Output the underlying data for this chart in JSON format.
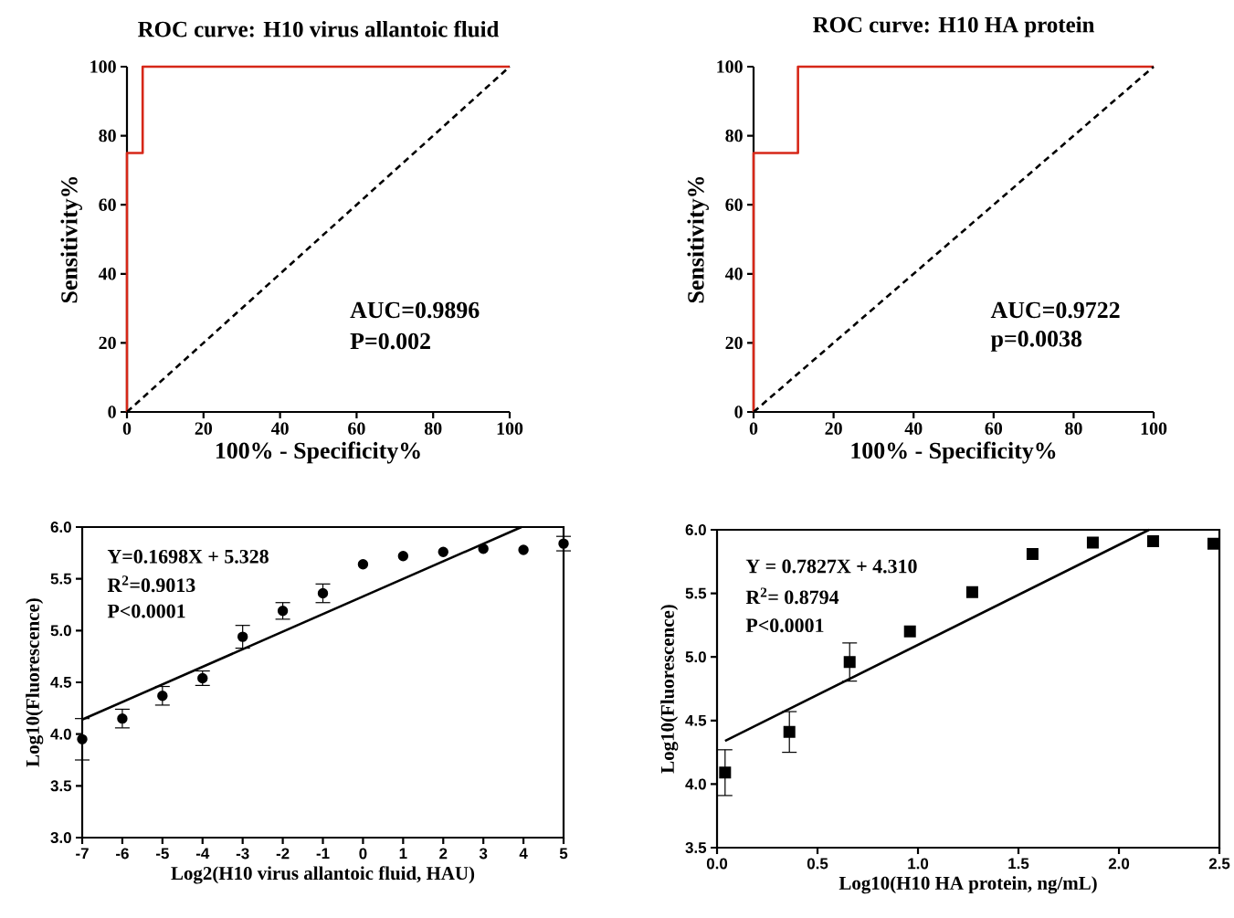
{
  "chart_data": [
    {
      "type": "line",
      "title": "ROC curve: H10 virus allantoic fluid",
      "xlabel": "100% - Specificity%",
      "ylabel": "Sensitivity%",
      "xlim": [
        0,
        100
      ],
      "ylim": [
        0,
        100
      ],
      "xticks": [
        0,
        20,
        40,
        60,
        80,
        100
      ],
      "yticks": [
        0,
        20,
        40,
        60,
        80,
        100
      ],
      "series": [
        {
          "color": "#d62718",
          "line_style": "solid",
          "x": [
            0,
            0,
            4.1,
            4.1,
            100
          ],
          "values": [
            0,
            75,
            75,
            100,
            100
          ]
        },
        {
          "color": "#000000",
          "line_style": "dashed",
          "x": [
            0,
            100
          ],
          "values": [
            0,
            100
          ]
        }
      ],
      "annotations": [
        "AUC=0.9896",
        "P=0.002"
      ]
    },
    {
      "type": "line",
      "title": "ROC curve: H10 HA protein",
      "xlabel": "100% - Specificity%",
      "ylabel": "Sensitivity%",
      "xlim": [
        0,
        100
      ],
      "ylim": [
        0,
        100
      ],
      "xticks": [
        0,
        20,
        40,
        60,
        80,
        100
      ],
      "yticks": [
        0,
        20,
        40,
        60,
        80,
        100
      ],
      "series": [
        {
          "color": "#d62718",
          "line_style": "solid",
          "x": [
            0,
            0,
            11.1,
            11.1,
            100
          ],
          "values": [
            0,
            75,
            75,
            100,
            100
          ]
        },
        {
          "color": "#000000",
          "line_style": "dashed",
          "x": [
            0,
            100
          ],
          "values": [
            0,
            100
          ]
        }
      ],
      "annotations": [
        "AUC=0.9722",
        "p=0.0038"
      ]
    },
    {
      "type": "scatter",
      "xlabel": "Log2(H10 virus allantoic fluid, HAU)",
      "ylabel": "Log10(Fluorescence)",
      "xlim": [
        -7,
        5
      ],
      "ylim": [
        3.0,
        6.0
      ],
      "xticks": [
        -7,
        -6,
        -5,
        -4,
        -3,
        -2,
        -1,
        0,
        1,
        2,
        3,
        4,
        5
      ],
      "yticks": [
        {
          "value": 3.0,
          "label": "3.0"
        },
        {
          "value": 3.5,
          "label": "3.5"
        },
        {
          "value": 4.0,
          "label": "4.0"
        },
        {
          "value": 4.5,
          "label": "4.5"
        },
        {
          "value": 5.0,
          "label": "5.0"
        },
        {
          "value": 5.5,
          "label": "5.5"
        },
        {
          "value": 6.0,
          "label": "6.0"
        }
      ],
      "series": [
        {
          "color": "#000000",
          "marker": "circle",
          "x": [
            -7,
            -6,
            -5,
            -4,
            -3,
            -2,
            -1,
            0,
            1,
            2,
            3,
            4,
            5
          ],
          "values": [
            3.95,
            4.15,
            4.37,
            4.54,
            4.94,
            5.19,
            5.36,
            5.64,
            5.72,
            5.76,
            5.79,
            5.78,
            5.84
          ],
          "errors": [
            0.2,
            0.09,
            0.09,
            0.07,
            0.11,
            0.08,
            0.09,
            null,
            null,
            null,
            null,
            null,
            0.07
          ]
        },
        {
          "type": "line",
          "color": "#000000",
          "line_style": "solid",
          "x": [
            -7,
            3.95
          ],
          "values": [
            4.14,
            6.0
          ]
        }
      ],
      "annotations": [
        "Y=0.1698X + 5.328",
        "R$^{2}$=0.9013",
        "P<0.0001"
      ]
    },
    {
      "type": "scatter",
      "xlabel": "Log10(H10 HA protein, ng/mL)",
      "ylabel": "Log10(Fluorescence)",
      "xlim": [
        0,
        2.5
      ],
      "ylim": [
        3.5,
        6.0
      ],
      "xticks": [
        {
          "value": 0,
          "label": "0.0"
        },
        {
          "value": 0.5,
          "label": "0.5"
        },
        {
          "value": 1.0,
          "label": "1.0"
        },
        {
          "value": 1.5,
          "label": "1.5"
        },
        {
          "value": 2.0,
          "label": "2.0"
        },
        {
          "value": 2.5,
          "label": "2.5"
        }
      ],
      "yticks": [
        {
          "value": 3.5,
          "label": "3.5"
        },
        {
          "value": 4.0,
          "label": "4.0"
        },
        {
          "value": 4.5,
          "label": "4.5"
        },
        {
          "value": 5.0,
          "label": "5.0"
        },
        {
          "value": 5.5,
          "label": "5.5"
        },
        {
          "value": 6.0,
          "label": "6.0"
        }
      ],
      "series": [
        {
          "color": "#000000",
          "marker": "square",
          "x": [
            0.04,
            0.36,
            0.66,
            0.96,
            1.27,
            1.57,
            1.87,
            2.17,
            2.47
          ],
          "values": [
            4.09,
            4.41,
            4.96,
            5.2,
            5.51,
            5.81,
            5.9,
            5.91,
            5.89
          ],
          "errors": [
            0.18,
            0.16,
            0.15,
            null,
            null,
            null,
            null,
            null,
            null
          ]
        },
        {
          "type": "line",
          "color": "#000000",
          "line_style": "solid",
          "x": [
            0.04,
            2.15
          ],
          "values": [
            4.34,
            6.0
          ]
        }
      ],
      "annotations": [
        "Y = 0.7827X + 4.310",
        "R$^{2}$= 0.8794",
        "P<0.0001"
      ]
    }
  ]
}
